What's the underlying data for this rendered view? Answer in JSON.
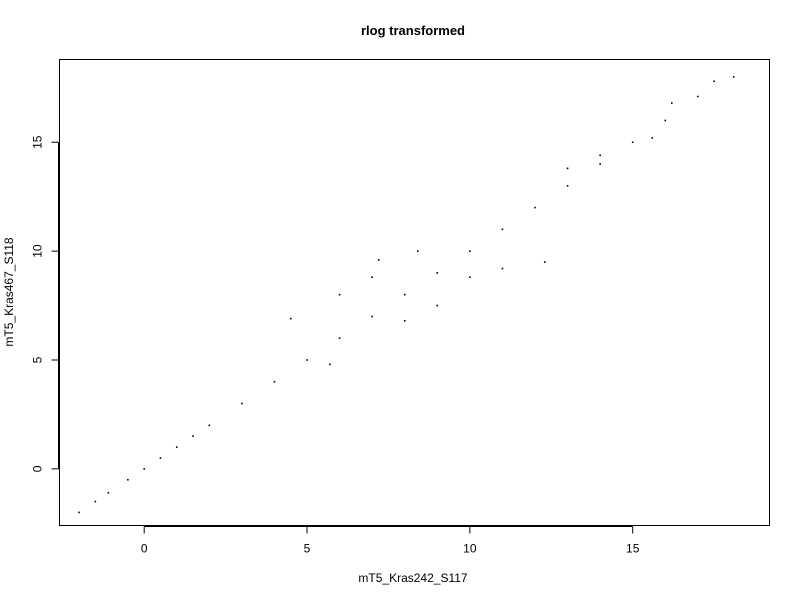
{
  "chart_data": {
    "type": "scatter",
    "title": "rlog transformed",
    "xlabel": "mT5_Kras242_S117",
    "ylabel": "mT5_Kras467_S118",
    "xlim": [
      -2.6,
      19.2
    ],
    "ylim": [
      -2.6,
      18.8
    ],
    "xticks": [
      0,
      5,
      10,
      15
    ],
    "yticks": [
      0,
      5,
      10,
      15
    ],
    "grid": false,
    "legend": "none",
    "point_color": "#000000",
    "series": [
      {
        "points": [
          [
            -2.0,
            -2.0
          ],
          [
            -1.5,
            -1.5
          ],
          [
            -1.1,
            -1.1
          ],
          [
            -0.5,
            -0.5
          ],
          [
            0.0,
            0.0
          ],
          [
            0.5,
            0.5
          ],
          [
            1.0,
            1.0
          ],
          [
            1.5,
            1.5
          ],
          [
            2.0,
            2.0
          ],
          [
            3.0,
            3.0
          ],
          [
            4.0,
            4.0
          ],
          [
            5.0,
            5.0
          ],
          [
            6.0,
            6.0
          ],
          [
            7.0,
            7.0
          ],
          [
            8.0,
            8.0
          ],
          [
            9.0,
            9.0
          ],
          [
            10.0,
            10.0
          ],
          [
            11.0,
            11.0
          ],
          [
            12.0,
            12.0
          ],
          [
            13.0,
            13.0
          ],
          [
            14.0,
            14.0
          ],
          [
            15.0,
            15.0
          ],
          [
            16.0,
            16.0
          ],
          [
            17.0,
            17.1
          ],
          [
            17.5,
            17.8
          ],
          [
            18.1,
            18.0
          ],
          [
            4.5,
            6.9
          ],
          [
            6.0,
            8.0
          ],
          [
            7.0,
            8.8
          ],
          [
            7.2,
            9.6
          ],
          [
            8.4,
            10.0
          ],
          [
            8.0,
            6.8
          ],
          [
            9.0,
            7.5
          ],
          [
            10.0,
            8.8
          ],
          [
            11.0,
            9.2
          ],
          [
            12.3,
            9.5
          ],
          [
            13.0,
            13.8
          ],
          [
            14.0,
            14.4
          ],
          [
            16.2,
            16.8
          ],
          [
            15.6,
            15.2
          ],
          [
            5.7,
            4.8
          ]
        ]
      }
    ]
  }
}
